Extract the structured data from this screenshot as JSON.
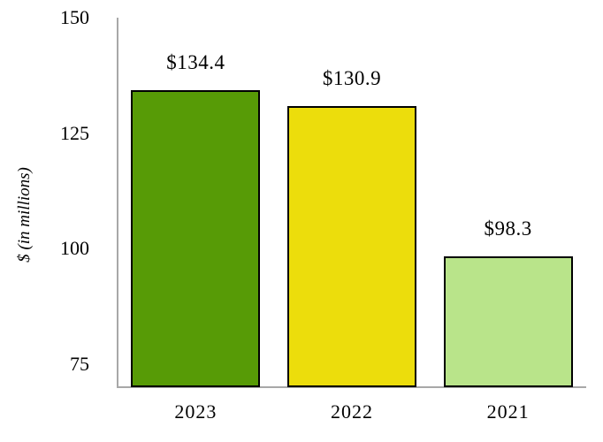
{
  "chart_data": {
    "type": "bar",
    "categories": [
      "2023",
      "2022",
      "2021"
    ],
    "values": [
      134.4,
      130.9,
      98.3
    ],
    "value_labels": [
      "$134.4",
      "$130.9",
      "$98.3"
    ],
    "bar_colors": [
      "#579b06",
      "#ecdd0c",
      "#b9e48a"
    ],
    "bar_border_color": "#000000",
    "title": "",
    "xlabel": "",
    "ylabel": "$ (in millions)",
    "ylim": [
      70,
      150
    ],
    "yticks": [
      150,
      125,
      100,
      75
    ],
    "grid": false,
    "legend": false,
    "axis_color": "#a8a8a8",
    "text_color": "#000000"
  }
}
